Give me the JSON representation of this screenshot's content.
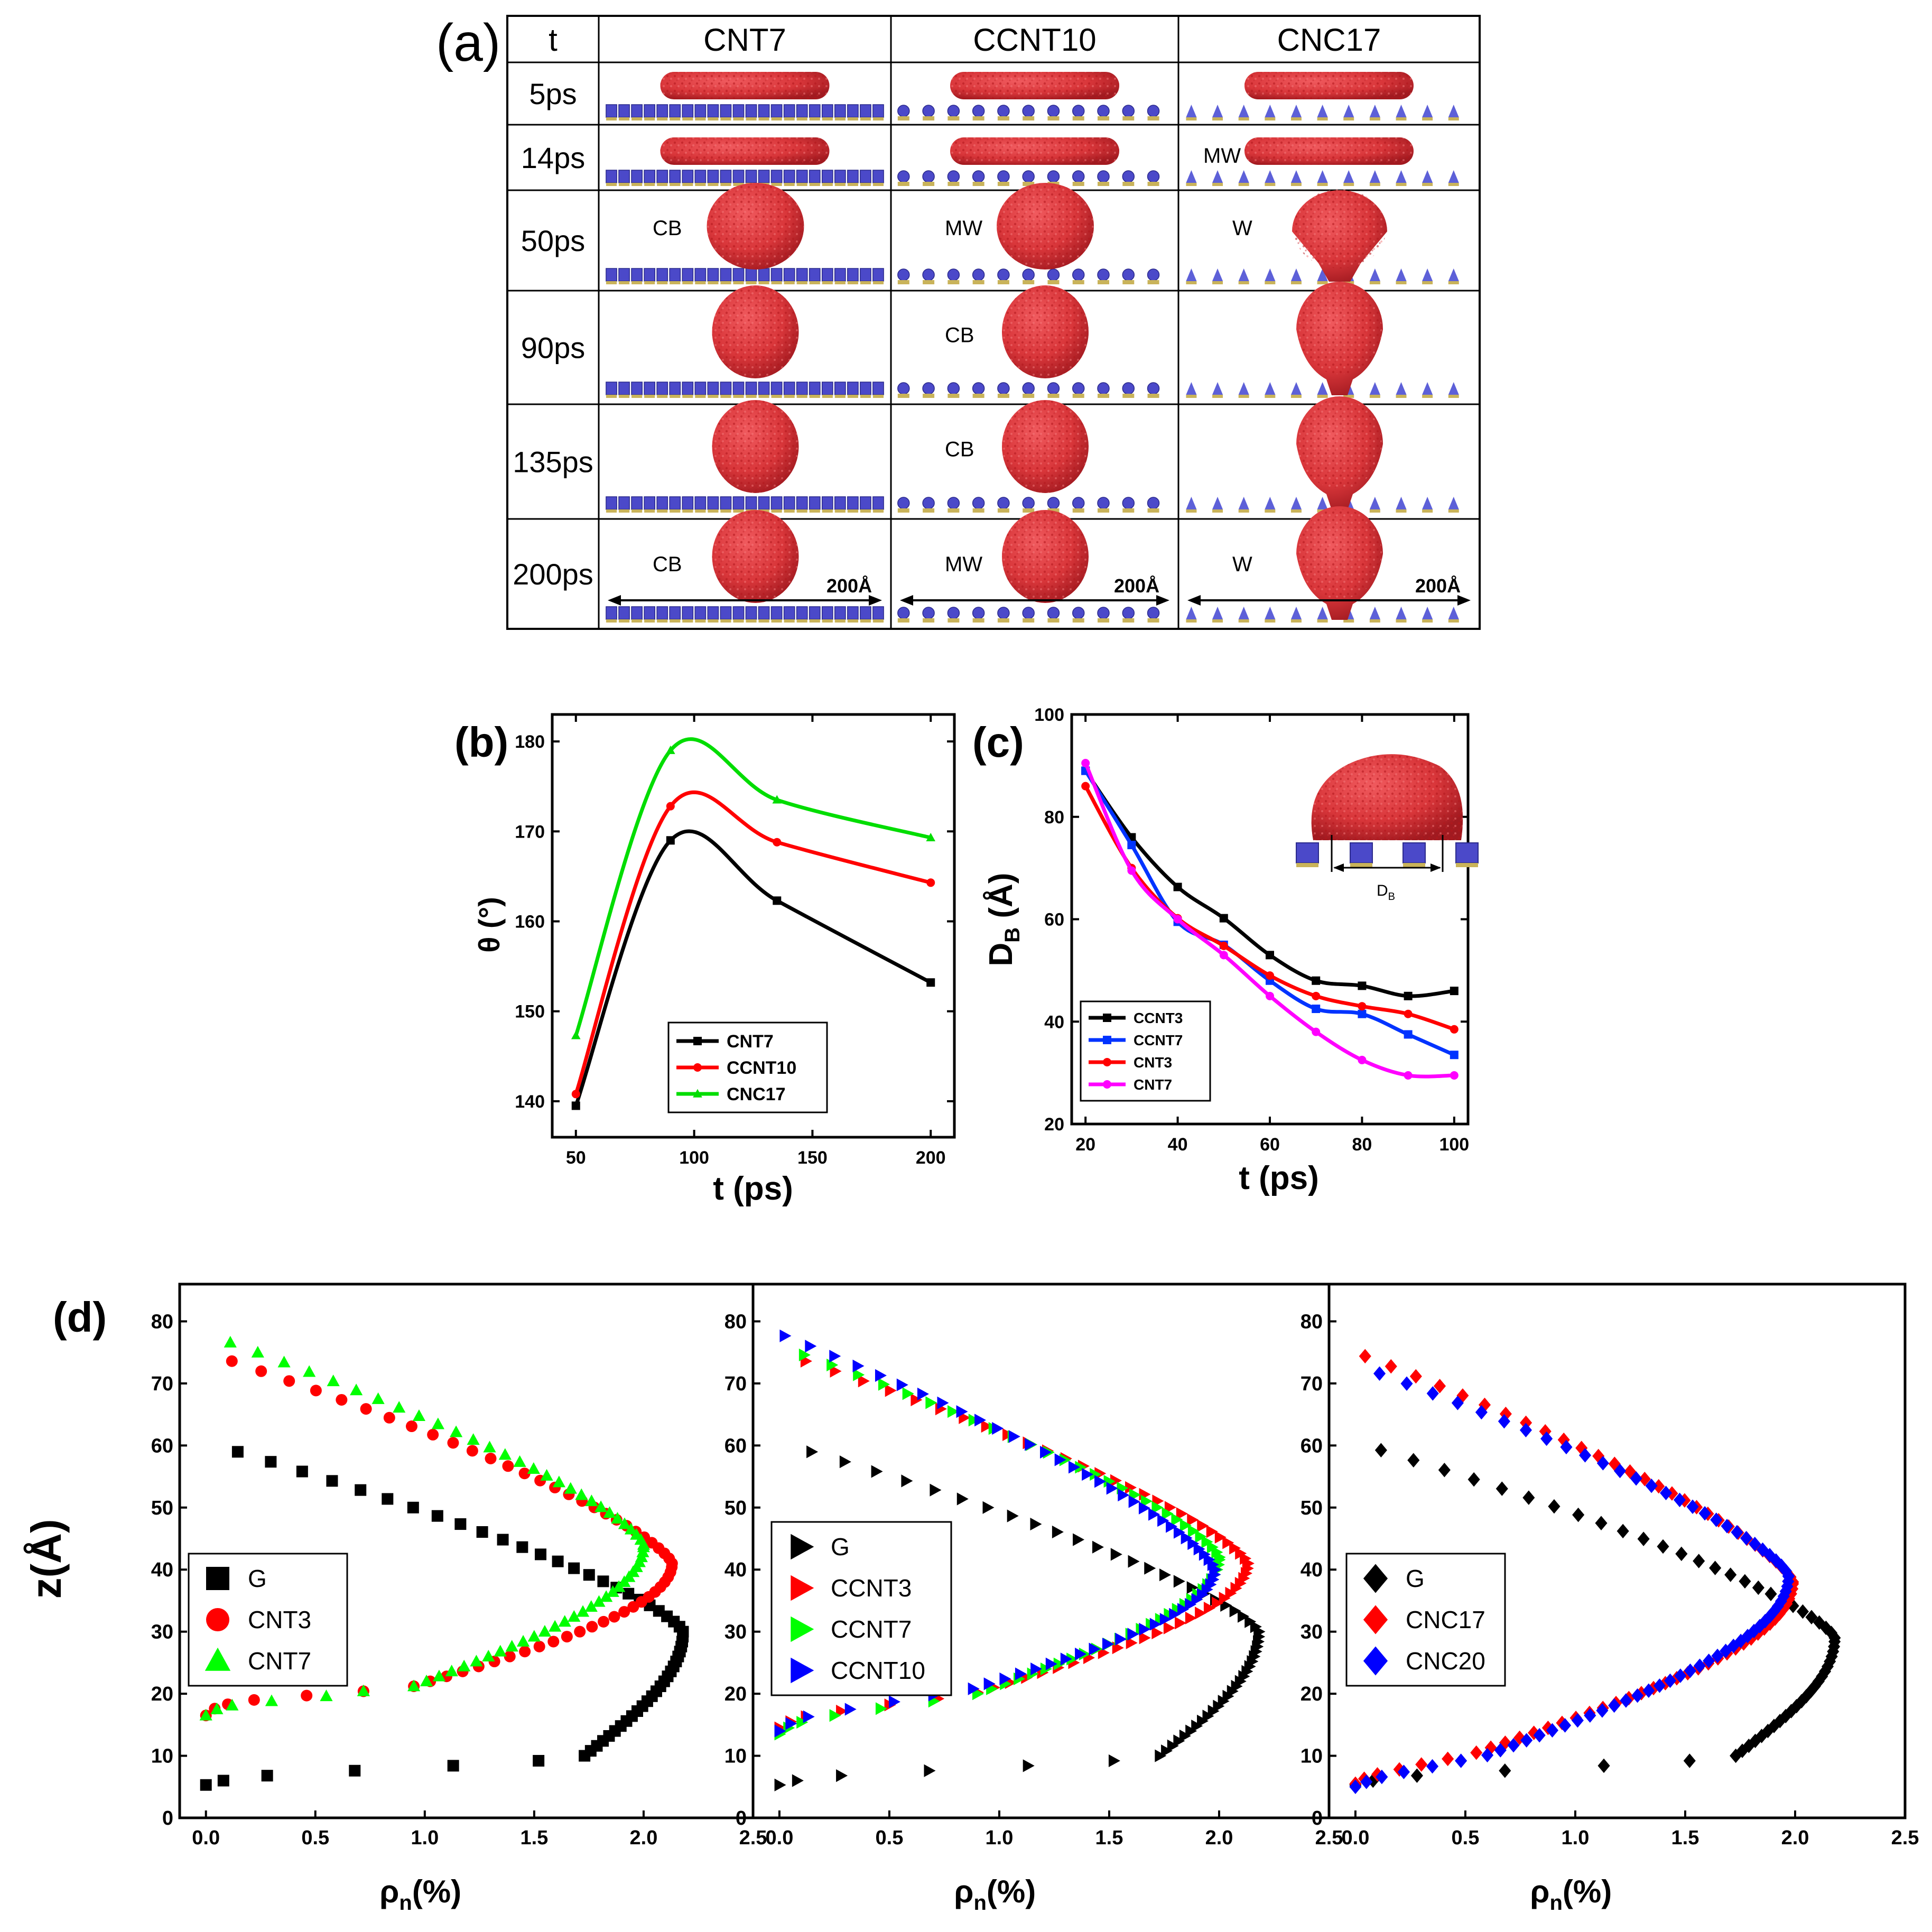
{
  "panel_a": {
    "label": "(a)",
    "header": {
      "t": "t",
      "cols": [
        "CNT7",
        "CCNT10",
        "CNC17"
      ]
    },
    "rows": [
      {
        "t": "5ps",
        "shapes": [
          "film",
          "film",
          "film"
        ],
        "labels": [
          "",
          "",
          ""
        ],
        "droplet_x_offset": [
          0,
          0,
          0
        ]
      },
      {
        "t": "14ps",
        "shapes": [
          "film",
          "film",
          "film"
        ],
        "labels": [
          "",
          "",
          "MW"
        ],
        "droplet_x_offset": [
          0,
          0,
          0
        ]
      },
      {
        "t": "50ps",
        "shapes": [
          "cap",
          "cap",
          "wet"
        ],
        "labels": [
          "CB",
          "MW",
          "W"
        ],
        "droplet_x_offset": [
          0,
          0,
          0
        ]
      },
      {
        "t": "90ps",
        "shapes": [
          "sphere",
          "sphere",
          "wetsphere"
        ],
        "labels": [
          "",
          "CB",
          ""
        ],
        "droplet_x_offset": [
          0,
          0,
          0
        ]
      },
      {
        "t": "135ps",
        "shapes": [
          "sphere",
          "sphere",
          "wetsphere"
        ],
        "labels": [
          "",
          "CB",
          ""
        ],
        "droplet_x_offset": [
          0,
          0,
          0
        ]
      },
      {
        "t": "200ps",
        "shapes": [
          "sphere",
          "sphere",
          "wetsphere"
        ],
        "labels": [
          "CB",
          "MW",
          "W"
        ],
        "droplet_x_offset": [
          0,
          0,
          0
        ]
      }
    ],
    "scale_label": "200Å",
    "colors": {
      "droplet": "#d9363a",
      "droplet_dark": "#a8191f",
      "pillar": "#4b49c9",
      "pillar_base": "#c9b35a",
      "cone": "#5d60d8"
    }
  },
  "panel_b": {
    "label": "(b)",
    "chart_data": {
      "type": "line",
      "xlabel": "t (ps)",
      "ylabel": "θ (°)",
      "xlim": [
        40,
        210
      ],
      "ylim": [
        136,
        183
      ],
      "xticks": [
        50,
        100,
        150,
        200
      ],
      "yticks": [
        140,
        150,
        160,
        170,
        180
      ],
      "series": [
        {
          "name": "CNT7",
          "color": "#000000",
          "marker": "square",
          "x": [
            50,
            90,
            135,
            200
          ],
          "y": [
            139.5,
            169.0,
            162.3,
            153.2
          ]
        },
        {
          "name": "CCNT10",
          "color": "#ff0000",
          "marker": "circle",
          "x": [
            50,
            90,
            135,
            200
          ],
          "y": [
            140.8,
            172.8,
            168.8,
            164.3
          ]
        },
        {
          "name": "CNC17",
          "color": "#00dd00",
          "marker": "triangle",
          "x": [
            50,
            90,
            135,
            200
          ],
          "y": [
            147.3,
            179.0,
            173.5,
            169.3
          ]
        }
      ],
      "legend": "bottom-center"
    }
  },
  "panel_c": {
    "label": "(c)",
    "inset_label": "D",
    "inset_label_sub": "B",
    "chart_data": {
      "type": "line",
      "xlabel": "t (ps)",
      "ylabel": "D",
      "ylabel_sub": "B",
      "ylabel_unit": " (Å)",
      "xlim": [
        17,
        103
      ],
      "ylim": [
        20,
        100
      ],
      "xticks": [
        20,
        40,
        60,
        80,
        100
      ],
      "yticks": [
        20,
        40,
        60,
        80,
        100
      ],
      "series": [
        {
          "name": "CCNT3",
          "color": "#000000",
          "marker": "square",
          "x": [
            20,
            30,
            40,
            50,
            60,
            70,
            80,
            90,
            100
          ],
          "y": [
            89.0,
            76.0,
            66.3,
            60.2,
            53.0,
            48.0,
            47.0,
            45.0,
            46.0
          ]
        },
        {
          "name": "CCNT7",
          "color": "#0033ff",
          "marker": "square",
          "x": [
            20,
            30,
            40,
            50,
            60,
            70,
            80,
            90,
            100
          ],
          "y": [
            89.0,
            74.5,
            59.5,
            55.0,
            48.0,
            42.5,
            41.5,
            37.5,
            33.5
          ]
        },
        {
          "name": "CNT3",
          "color": "#ff0000",
          "marker": "circle",
          "x": [
            20,
            30,
            40,
            50,
            60,
            70,
            80,
            90,
            100
          ],
          "y": [
            86.0,
            70.0,
            60.2,
            54.8,
            49.0,
            45.0,
            43.0,
            41.5,
            38.5
          ]
        },
        {
          "name": "CNT7",
          "color": "#ff00ff",
          "marker": "circle",
          "x": [
            20,
            30,
            40,
            50,
            60,
            70,
            80,
            90,
            100
          ],
          "y": [
            90.5,
            69.5,
            60.0,
            53.0,
            45.0,
            38.0,
            32.5,
            29.5,
            29.5
          ]
        }
      ],
      "legend": "bottom-left"
    }
  },
  "panel_d": {
    "label": "(d)",
    "ylabel": "z(Å)",
    "xlabel": "ρ",
    "xlabel_sub": "n",
    "xlabel_unit": "(%)",
    "xticks": [
      0.0,
      0.5,
      1.0,
      1.5,
      2.0,
      2.5
    ],
    "yticks": [
      0,
      10,
      20,
      30,
      40,
      50,
      60,
      70,
      80
    ],
    "xlim": [
      -0.12,
      2.5
    ],
    "ylim": [
      0,
      86
    ],
    "subplots": [
      {
        "legend": [
          {
            "name": "G",
            "marker": "square",
            "color": "#000000"
          },
          {
            "name": "CNT3",
            "marker": "circle",
            "color": "#ff0000"
          },
          {
            "name": "CNT7",
            "marker": "triangle",
            "color": "#00ff00"
          }
        ]
      },
      {
        "legend": [
          {
            "name": "G",
            "marker": "tri-right",
            "color": "#000000"
          },
          {
            "name": "CCNT3",
            "marker": "tri-right",
            "color": "#ff0000"
          },
          {
            "name": "CCNT7",
            "marker": "tri-right",
            "color": "#00ff00"
          },
          {
            "name": "CCNT10",
            "marker": "tri-right",
            "color": "#0000ff"
          }
        ]
      },
      {
        "legend": [
          {
            "name": "G",
            "marker": "diamond",
            "color": "#000000"
          },
          {
            "name": "CNC17",
            "marker": "diamond",
            "color": "#ff0000"
          },
          {
            "name": "CNC20",
            "marker": "diamond",
            "color": "#0000ff"
          }
        ]
      }
    ],
    "chart_data": [
      {
        "type": "scatter",
        "subplot": 0,
        "name": "G",
        "color": "#000000",
        "marker": "square",
        "profile": {
          "z_bot": 5.3,
          "z_apex": 30,
          "z_top": 60.5,
          "x_apex": 2.18,
          "bottom_pts": [
            [
              0.0,
              5.3
            ],
            [
              0.08,
              6.0
            ],
            [
              0.28,
              6.8
            ],
            [
              0.68,
              7.6
            ],
            [
              1.13,
              8.4
            ],
            [
              1.52,
              9.2
            ],
            [
              1.73,
              10.0
            ]
          ]
        }
      },
      {
        "type": "scatter",
        "subplot": 0,
        "name": "CNT3",
        "color": "#ff0000",
        "marker": "circle",
        "profile": {
          "z_bot": 16.5,
          "z_apex": 41,
          "z_top": 75,
          "x_apex": 2.13,
          "top_hook": 0.3,
          "bottom_pts": [
            [
              0.0,
              16.5
            ],
            [
              0.04,
              17.6
            ],
            [
              0.1,
              18.3
            ],
            [
              0.22,
              19.0
            ],
            [
              0.46,
              19.7
            ],
            [
              0.72,
              20.4
            ],
            [
              0.95,
              21.2
            ]
          ]
        }
      },
      {
        "type": "scatter",
        "subplot": 0,
        "name": "CNT7",
        "color": "#00ff00",
        "marker": "triangle",
        "profile": {
          "z_bot": 16.5,
          "z_apex": 44,
          "z_top": 78,
          "x_apex": 2.0,
          "bottom_pts": [
            [
              0.0,
              16.5
            ],
            [
              0.05,
              17.5
            ],
            [
              0.12,
              18.1
            ],
            [
              0.3,
              18.8
            ],
            [
              0.55,
              19.6
            ],
            [
              0.72,
              20.4
            ],
            [
              0.95,
              21.2
            ]
          ]
        }
      },
      {
        "type": "scatter",
        "subplot": 1,
        "name": "G",
        "color": "#000000",
        "marker": "tri-right",
        "profile": {
          "z_bot": 5.3,
          "z_apex": 30,
          "z_top": 60.5,
          "x_apex": 2.18,
          "bottom_pts": [
            [
              0.0,
              5.3
            ],
            [
              0.08,
              6.0
            ],
            [
              0.28,
              6.8
            ],
            [
              0.68,
              7.6
            ],
            [
              1.13,
              8.4
            ],
            [
              1.52,
              9.2
            ],
            [
              1.73,
              10.0
            ]
          ]
        }
      },
      {
        "type": "scatter",
        "subplot": 1,
        "name": "CCNT3",
        "color": "#ff0000",
        "marker": "tri-right",
        "profile": {
          "z_bot": 14.5,
          "z_apex": 41,
          "z_top": 75,
          "x_apex": 2.13,
          "bottom_pts": [
            [
              0.0,
              14.5
            ],
            [
              0.05,
              15.5
            ],
            [
              0.12,
              16.3
            ],
            [
              0.28,
              17.2
            ],
            [
              0.5,
              18.2
            ],
            [
              0.72,
              19.2
            ],
            [
              0.9,
              20.2
            ]
          ]
        }
      },
      {
        "type": "scatter",
        "subplot": 1,
        "name": "CCNT7",
        "color": "#00ff00",
        "marker": "tri-right",
        "profile": {
          "z_bot": 13.5,
          "z_apex": 42,
          "z_top": 76,
          "x_apex": 2.0,
          "bottom_pts": [
            [
              0.0,
              13.5
            ],
            [
              0.04,
              14.5
            ],
            [
              0.1,
              15.4
            ],
            [
              0.25,
              16.5
            ],
            [
              0.46,
              17.6
            ],
            [
              0.7,
              18.8
            ],
            [
              0.9,
              20.0
            ]
          ]
        }
      },
      {
        "type": "scatter",
        "subplot": 1,
        "name": "CCNT10",
        "color": "#0000ff",
        "marker": "tri-right",
        "profile": {
          "z_bot": 14.0,
          "z_apex": 40,
          "z_top": 78,
          "x_apex": 1.98,
          "bottom_pts": [
            [
              0.0,
              14.0
            ],
            [
              0.05,
              15.2
            ],
            [
              0.13,
              16.3
            ],
            [
              0.32,
              17.5
            ],
            [
              0.52,
              18.7
            ],
            [
              0.7,
              19.8
            ],
            [
              0.88,
              20.8
            ]
          ]
        }
      },
      {
        "type": "scatter",
        "subplot": 2,
        "name": "G",
        "color": "#000000",
        "marker": "diamond",
        "profile": {
          "z_bot": 5.3,
          "z_apex": 29,
          "z_top": 60.5,
          "x_apex": 2.18,
          "bottom_pts": [
            [
              0.0,
              5.3
            ],
            [
              0.08,
              6.0
            ],
            [
              0.28,
              6.8
            ],
            [
              0.68,
              7.6
            ],
            [
              1.13,
              8.4
            ],
            [
              1.52,
              9.2
            ],
            [
              1.73,
              10.0
            ]
          ]
        }
      },
      {
        "type": "scatter",
        "subplot": 2,
        "name": "CNC17",
        "color": "#ff0000",
        "marker": "diamond",
        "profile": {
          "z_bot": 5.5,
          "z_apex": 38,
          "z_top": 75,
          "x_apex": 1.99,
          "top_hook": 0.2,
          "bottom_pts": [
            [
              0.0,
              5.5
            ],
            [
              0.04,
              6.3
            ],
            [
              0.1,
              7.0
            ],
            [
              0.2,
              7.8
            ],
            [
              0.3,
              8.6
            ],
            [
              0.42,
              9.5
            ],
            [
              0.55,
              10.5
            ]
          ]
        }
      },
      {
        "type": "scatter",
        "subplot": 2,
        "name": "CNC20",
        "color": "#0000ff",
        "marker": "diamond",
        "profile": {
          "z_bot": 5.0,
          "z_apex": 39,
          "z_top": 73,
          "x_apex": 1.97,
          "top_hook": 0.2,
          "bottom_pts": [
            [
              0.0,
              5.0
            ],
            [
              0.05,
              5.8
            ],
            [
              0.12,
              6.6
            ],
            [
              0.22,
              7.4
            ],
            [
              0.35,
              8.3
            ],
            [
              0.48,
              9.2
            ],
            [
              0.6,
              10.1
            ]
          ]
        }
      }
    ]
  }
}
